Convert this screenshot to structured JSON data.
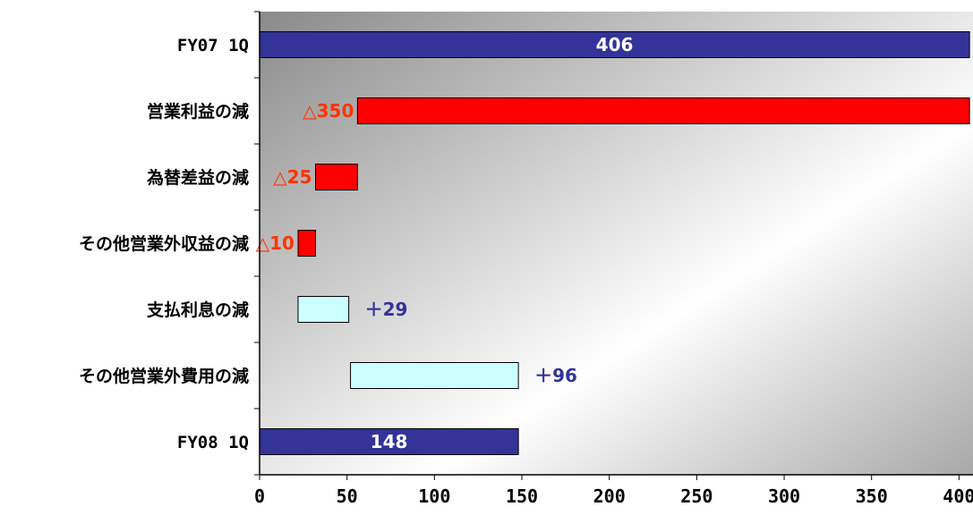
{
  "chart_data": {
    "type": "bar",
    "subtype": "waterfall-horizontal",
    "categories": [
      "FY07 1Q",
      "営業利益の減",
      "為替差益の減",
      "その他営業外収益の減",
      "支払利息の減",
      "その他営業外費用の減",
      "FY08 1Q"
    ],
    "bars": [
      {
        "start": 0,
        "end": 406,
        "kind": "total",
        "label": "406"
      },
      {
        "start": 56,
        "end": 406,
        "kind": "decrease",
        "label": "△350"
      },
      {
        "start": 32,
        "end": 56,
        "kind": "decrease",
        "label": "△25"
      },
      {
        "start": 22,
        "end": 32,
        "kind": "decrease",
        "label": "△10"
      },
      {
        "start": 22,
        "end": 51,
        "kind": "increase",
        "label": "＋29"
      },
      {
        "start": 52,
        "end": 148,
        "kind": "increase",
        "label": "＋96"
      },
      {
        "start": 0,
        "end": 148,
        "kind": "total",
        "label": "148"
      }
    ],
    "xticks": [
      0,
      50,
      100,
      150,
      200,
      250,
      300,
      350,
      400
    ],
    "xlim": [
      0,
      408
    ],
    "colors": {
      "total": "#333399",
      "decrease": "#ff0000",
      "increase": "#ccffff",
      "decrease_label": "#ff3300",
      "increase_label": "#333399",
      "total_label": "#ffffff"
    },
    "background": "gradient-gray"
  }
}
